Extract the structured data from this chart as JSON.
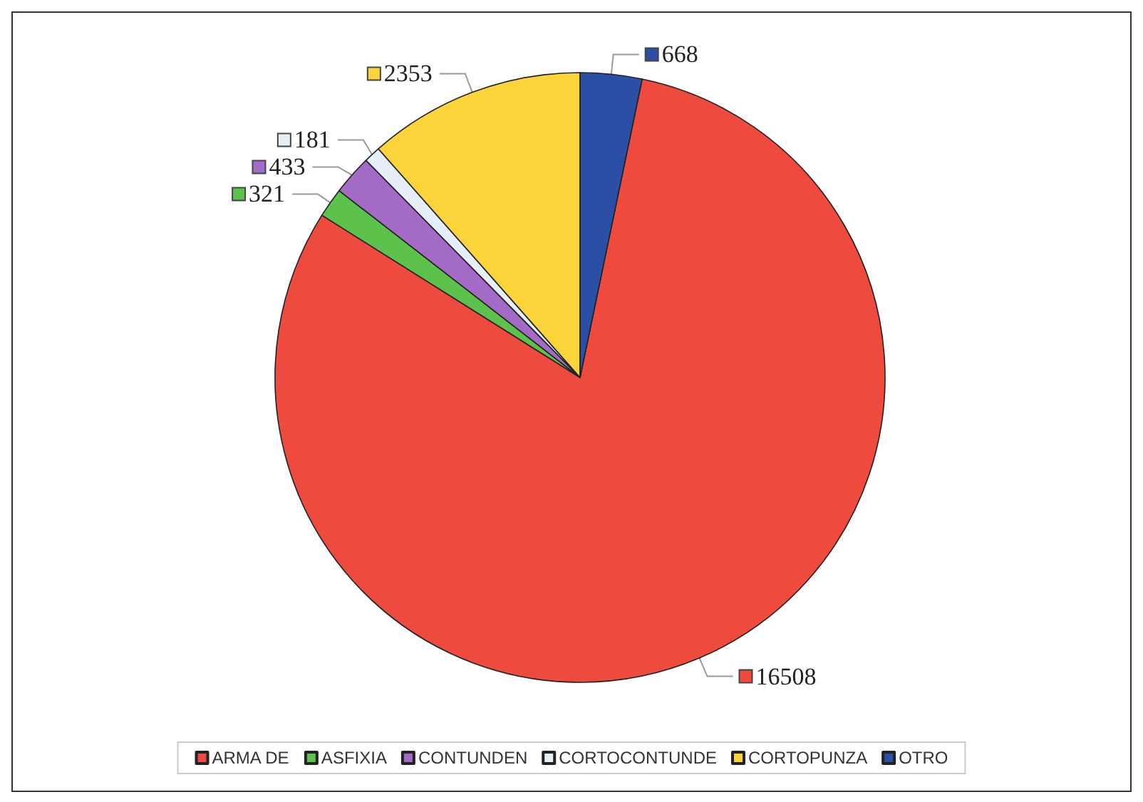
{
  "chart_data": {
    "type": "pie",
    "categories": [
      "ARMA DE",
      "ASFIXIA",
      "CONTUNDEN",
      "CORTOCONTUNDE",
      "CORTOPUNZA",
      "OTRO"
    ],
    "values": [
      16508,
      321,
      433,
      181,
      2353,
      668
    ],
    "colors": [
      "#ee4a3e",
      "#5cc24c",
      "#a46bc6",
      "#e6eef7",
      "#fbd43a",
      "#2c4fa6"
    ],
    "data_labels": true,
    "legend": "bottom"
  }
}
